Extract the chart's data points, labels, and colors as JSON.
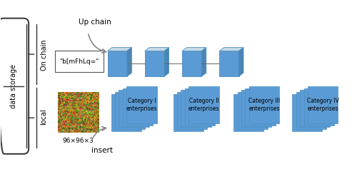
{
  "bg_color": "#ffffff",
  "data_storage_label": "data storage",
  "on_chain_label": "On chain",
  "local_label": "local",
  "up_chain_label": "Up chain",
  "insert_label": "insert",
  "hash_label": "\"b[mFhLq=\"",
  "dim_label": "96×96×3",
  "categories": [
    "Category I\nenterprises",
    "Category II\nenterprises",
    "Category III\nenterprises",
    "Category IV\nenterprises"
  ],
  "block_color": "#5b9bd5",
  "block_top_color": "#c0d8eb",
  "block_side_color": "#3f7fbf",
  "block_border": "#4a8fc0",
  "chain_block_color": "#5b9bd5",
  "chain_top_color": "#c5d8e8",
  "chain_side_color": "#4a85b5",
  "box_border": "#555555",
  "line_color": "#666666",
  "arrow_color": "#888888",
  "brace_color": "#333333",
  "text_color": "#222222"
}
